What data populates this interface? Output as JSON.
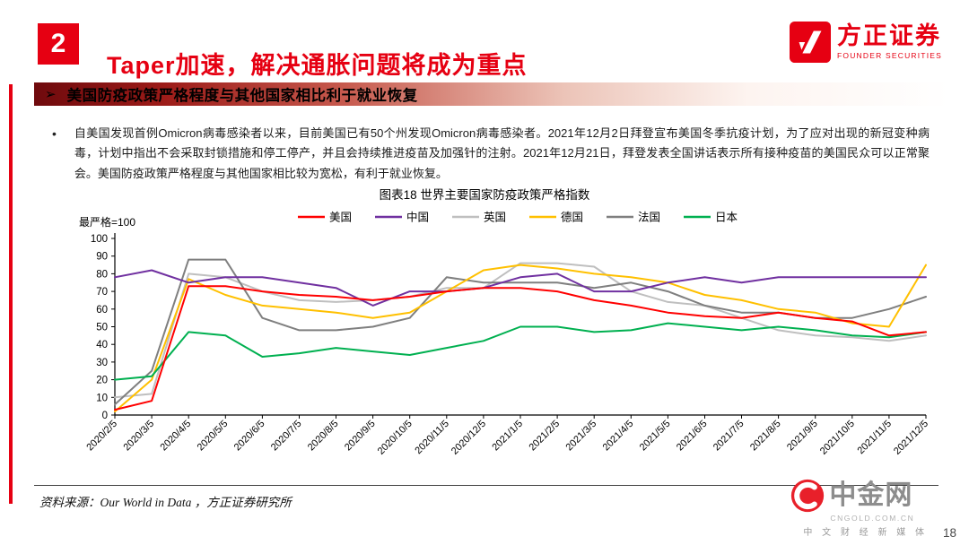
{
  "header": {
    "section_number": "2",
    "title": "Taper加速，解决通胀问题将成为重点",
    "brand_cn": "方正证券",
    "brand_en": "FOUNDER SECURITIES"
  },
  "banner": {
    "bullet": "➢",
    "text": "美国防疫政策严格程度与其他国家相比利于就业恢复"
  },
  "paragraph": {
    "bullet": "•",
    "text": "自美国发现首例Omicron病毒感染者以来，目前美国已有50个州发现Omicron病毒感染者。2021年12月2日拜登宣布美国冬季抗疫计划，为了应对出现的新冠变种病毒，计划中指出不会采取封锁措施和停工停产，并且会持续推进疫苗及加强针的注射。2021年12月21日，拜登发表全国讲话表示所有接种疫苗的美国民众可以正常聚会。美国防疫政策严格程度与其他国家相比较为宽松，有利于就业恢复。"
  },
  "chart_data": {
    "type": "line",
    "title": "图表18 世界主要国家防疫政策严格指数",
    "axis_note": "最严格=100",
    "xlabel": "",
    "ylabel": "",
    "ylim": [
      0,
      100
    ],
    "ytick_step": 10,
    "grid": false,
    "legend_position": "top",
    "categories": [
      "2020/2/5",
      "2020/3/5",
      "2020/4/5",
      "2020/5/5",
      "2020/6/5",
      "2020/7/5",
      "2020/8/5",
      "2020/9/5",
      "2020/10/5",
      "2020/11/5",
      "2020/12/5",
      "2021/1/5",
      "2021/2/5",
      "2021/3/5",
      "2021/4/5",
      "2021/5/5",
      "2021/6/5",
      "2021/7/5",
      "2021/8/5",
      "2021/9/5",
      "2021/10/5",
      "2021/11/5",
      "2021/12/5"
    ],
    "series": [
      {
        "key": "us",
        "name": "美国",
        "color": "#ff0000",
        "values": [
          3,
          8,
          73,
          73,
          70,
          68,
          67,
          65,
          67,
          70,
          72,
          72,
          70,
          65,
          62,
          58,
          56,
          55,
          58,
          55,
          53,
          45,
          47
        ]
      },
      {
        "key": "china",
        "name": "中国",
        "color": "#7030a0",
        "values": [
          78,
          82,
          75,
          78,
          78,
          75,
          72,
          62,
          70,
          70,
          72,
          78,
          80,
          70,
          70,
          75,
          78,
          75,
          78,
          78,
          78,
          78,
          78
        ]
      },
      {
        "key": "uk",
        "name": "英国",
        "color": "#bfbfbf",
        "values": [
          10,
          12,
          80,
          78,
          70,
          65,
          64,
          65,
          67,
          72,
          72,
          86,
          86,
          84,
          70,
          64,
          62,
          55,
          48,
          45,
          44,
          42,
          45
        ]
      },
      {
        "key": "germany",
        "name": "德国",
        "color": "#ffc000",
        "values": [
          2,
          20,
          77,
          68,
          62,
          60,
          58,
          55,
          58,
          70,
          82,
          85,
          83,
          80,
          78,
          75,
          68,
          65,
          60,
          58,
          52,
          50,
          85
        ]
      },
      {
        "key": "france",
        "name": "法国",
        "color": "#7f7f7f",
        "values": [
          6,
          25,
          88,
          88,
          55,
          48,
          48,
          50,
          55,
          78,
          75,
          75,
          75,
          72,
          75,
          70,
          62,
          58,
          58,
          55,
          55,
          60,
          67
        ]
      },
      {
        "key": "japan",
        "name": "日本",
        "color": "#00b050",
        "values": [
          20,
          22,
          47,
          45,
          33,
          35,
          38,
          36,
          34,
          38,
          42,
          50,
          50,
          47,
          48,
          52,
          50,
          48,
          50,
          48,
          45,
          44,
          47
        ]
      }
    ]
  },
  "footer": {
    "source": "资料来源：Our World in Data ，方正证券研究所",
    "page_number": "18",
    "logo_cn": "中金网",
    "logo_domain": "CNGOLD.COM.CN",
    "logo_tagline": "中 文 财 经 新 媒 体"
  },
  "colors": {
    "accent_red": "#e60012",
    "banner_dark_red": "#6f0a0d",
    "logo_red": "#e8202a"
  }
}
